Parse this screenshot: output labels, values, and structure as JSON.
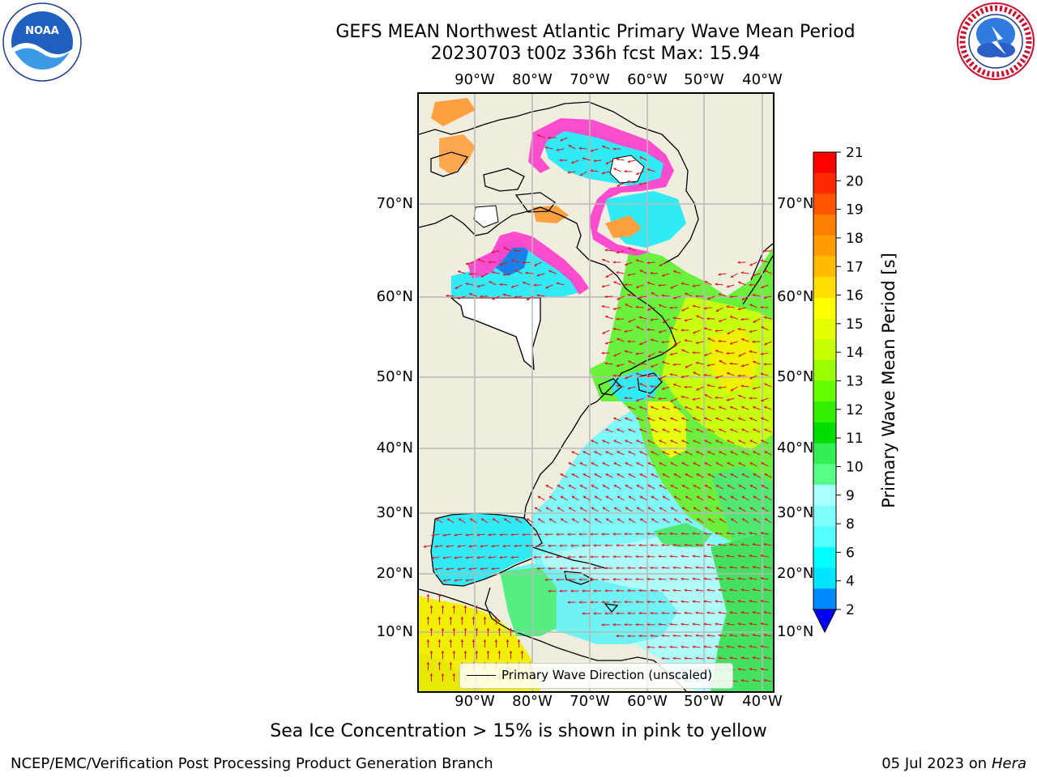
{
  "title": {
    "line1": "GEFS MEAN Northwest Atlantic Primary Wave Mean Period",
    "line2": "20230703 t00z 336h fcst   Max: 15.94"
  },
  "logos": {
    "left": "noaa-logo",
    "right": "national-weather-service-logo"
  },
  "map": {
    "longitude_labels": [
      "90°W",
      "80°W",
      "70°W",
      "60°W",
      "50°W",
      "40°W"
    ],
    "latitude_labels": [
      "70°N",
      "60°N",
      "50°N",
      "40°N",
      "30°N",
      "20°N",
      "10°N"
    ],
    "legend_label": "Primary Wave Direction (unscaled)",
    "land_color": "#efedde",
    "ice_color": "#ff44cc",
    "arrow_color": "#e0141e"
  },
  "colorbar": {
    "title": "Primary Wave Mean Period [s]",
    "tick_labels": [
      "21",
      "20",
      "19",
      "18",
      "17",
      "16",
      "15",
      "14",
      "13",
      "12",
      "11",
      "10",
      "9",
      "8",
      "6",
      "4",
      "2"
    ],
    "colors_top_to_bottom": [
      "#ff0000",
      "#ff2b00",
      "#ff5500",
      "#ff7f00",
      "#ff9d00",
      "#ffbb00",
      "#ffdd00",
      "#ffff00",
      "#e6ff00",
      "#c8ff00",
      "#99ff00",
      "#66ff00",
      "#33ee00",
      "#00dd00",
      "#33ee55",
      "#55ff88",
      "#aaffff",
      "#80ffff",
      "#55ffff",
      "#00ffff",
      "#00e5ff",
      "#0088ff"
    ],
    "under_color": "#0000ff"
  },
  "footer": {
    "note": "Sea Ice Concentration > 15% is shown in pink to yellow",
    "credit": "NCEP/EMC/Verification Post Processing Product Generation Branch",
    "date": "05 Jul 2023 on ",
    "machine": "Hera"
  }
}
